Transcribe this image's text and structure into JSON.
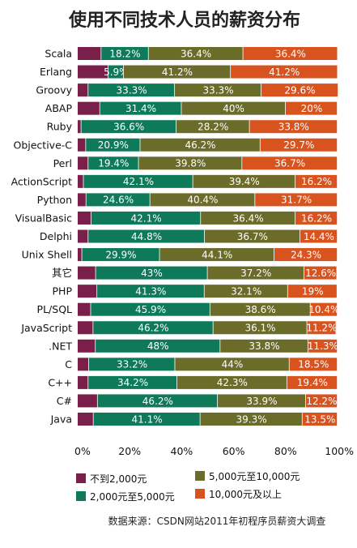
{
  "chart_data": {
    "type": "bar",
    "orientation": "horizontal",
    "stacked": true,
    "title": "使用不同技术人员的薪资分布",
    "source": "数据来源：CSDN网站2011年初程序员薪资大调查",
    "categories": [
      "Scala",
      "Erlang",
      "Groovy",
      "ABAP",
      "Ruby",
      "Objective-C",
      "Perl",
      "ActionScript",
      "Python",
      "VisualBasic",
      "Delphi",
      "Unix Shell",
      "其它",
      "PHP",
      "PL/SQL",
      "JavaScript",
      ".NET",
      "C",
      "C++",
      "C#",
      "Java"
    ],
    "series": [
      {
        "name": "不到2,000元",
        "color": "#7a1e4a",
        "values": [
          9.1,
          11.8,
          4.1,
          8.6,
          1.4,
          3.2,
          4.1,
          2.3,
          3.3,
          5.3,
          4.1,
          1.7,
          7.0,
          7.5,
          5.1,
          6.0,
          6.9,
          4.3,
          4.1,
          7.7,
          6.1
        ]
      },
      {
        "name": "2,000元至5,000元",
        "color": "#0e7a5a",
        "values": [
          18.2,
          5.9,
          33.3,
          31.4,
          36.6,
          20.9,
          19.4,
          42.1,
          24.6,
          42.1,
          44.8,
          29.9,
          43,
          41.3,
          45.9,
          46.2,
          48,
          33.2,
          34.2,
          46.2,
          41.1
        ]
      },
      {
        "name": "5,000元至10,000元",
        "color": "#6b6b2a",
        "values": [
          36.4,
          41.2,
          33.3,
          40,
          28.2,
          46.2,
          39.8,
          39.4,
          40.4,
          36.4,
          36.7,
          44.1,
          37.2,
          32.1,
          38.6,
          36.1,
          33.8,
          44,
          42.3,
          33.9,
          39.3
        ]
      },
      {
        "name": "10,000元及以上",
        "color": "#d9531e",
        "values": [
          36.4,
          41.2,
          29.6,
          20,
          33.8,
          29.7,
          36.7,
          16.2,
          31.7,
          16.2,
          14.4,
          24.3,
          12.6,
          19,
          10.4,
          11.2,
          11.3,
          18.5,
          19.4,
          12.2,
          13.5
        ]
      }
    ],
    "value_labels_shown_for_series": [
      1,
      2,
      3
    ],
    "value_labels": [
      [
        "18.2%",
        "36.4%",
        "36.4%"
      ],
      [
        "5.9%",
        "41.2%",
        "41.2%"
      ],
      [
        "33.3%",
        "33.3%",
        "29.6%"
      ],
      [
        "31.4%",
        "40%",
        "20%"
      ],
      [
        "36.6%",
        "28.2%",
        "33.8%"
      ],
      [
        "20.9%",
        "46.2%",
        "29.7%"
      ],
      [
        "19.4%",
        "39.8%",
        "36.7%"
      ],
      [
        "42.1%",
        "39.4%",
        "16.2%"
      ],
      [
        "24.6%",
        "40.4%",
        "31.7%"
      ],
      [
        "42.1%",
        "36.4%",
        "16.2%"
      ],
      [
        "44.8%",
        "36.7%",
        "14.4%"
      ],
      [
        "29.9%",
        "44.1%",
        "24.3%"
      ],
      [
        "43%",
        "37.2%",
        "12.6%"
      ],
      [
        "41.3%",
        "32.1%",
        "19%"
      ],
      [
        "45.9%",
        "38.6%",
        "10.4%"
      ],
      [
        "46.2%",
        "36.1%",
        "11.2%"
      ],
      [
        "48%",
        "33.8%",
        "11.3%"
      ],
      [
        "33.2%",
        "44%",
        "18.5%"
      ],
      [
        "34.2%",
        "42.3%",
        "19.4%"
      ],
      [
        "46.2%",
        "33.9%",
        "12.2%"
      ],
      [
        "41.1%",
        "39.3%",
        "13.5%"
      ]
    ],
    "xlim": [
      0,
      100
    ],
    "xticks": [
      "0%",
      "20%",
      "40%",
      "60%",
      "80%",
      "100%"
    ],
    "grid": false,
    "legend": {
      "placement": "bottom",
      "columns": 2
    }
  }
}
